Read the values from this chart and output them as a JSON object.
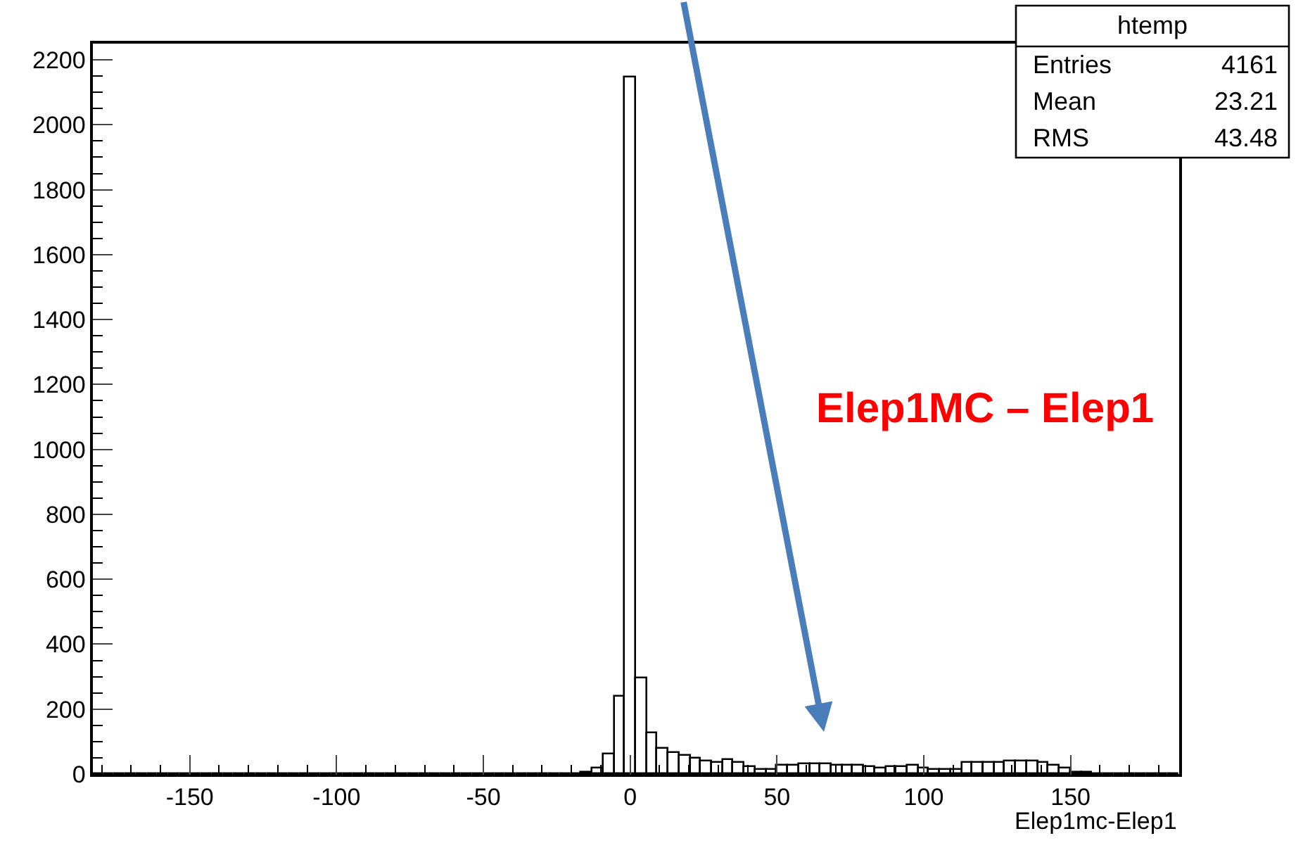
{
  "chart_data": {
    "type": "histogram",
    "xlabel": "Elep1mc-Elep1",
    "bins": [
      -183.0,
      -179.3,
      -175.6,
      -171.9,
      -168.2,
      -164.5,
      -160.8,
      -157.1,
      -153.4,
      -149.7,
      -146.0,
      -142.3,
      -138.6,
      -134.9,
      -131.2,
      -127.5,
      -123.8,
      -120.1,
      -116.4,
      -112.7,
      -109.0,
      -105.3,
      -101.6,
      -97.9,
      -94.2,
      -90.5,
      -86.8,
      -83.1,
      -79.4,
      -75.7,
      -72.0,
      -68.3,
      -64.6,
      -60.9,
      -57.2,
      -53.5,
      -49.8,
      -46.1,
      -42.4,
      -38.7,
      -35.0,
      -31.3,
      -27.6,
      -23.9,
      -20.2,
      -16.5,
      -12.8,
      -9.1,
      -5.4,
      -1.7,
      2.0,
      5.7,
      9.4,
      13.1,
      16.8,
      20.5,
      24.2,
      27.9,
      31.6,
      35.3,
      39.0,
      42.7,
      46.4,
      50.1,
      53.8,
      57.5,
      61.2,
      64.9,
      68.6,
      72.3,
      76.0,
      79.7,
      83.4,
      87.1,
      90.8,
      94.5,
      98.2,
      101.9,
      105.6,
      109.3,
      113.0,
      116.7,
      120.4,
      124.1,
      127.8,
      131.5,
      135.2,
      138.9,
      142.6,
      146.3,
      150.0,
      153.7,
      157.4,
      161.1,
      164.8,
      168.5,
      172.2,
      175.9,
      179.6,
      183.3,
      187.0
    ],
    "values": [
      0,
      0,
      0,
      0,
      0,
      0,
      0,
      0,
      0,
      0,
      0,
      0,
      0,
      0,
      0,
      0,
      0,
      0,
      0,
      0,
      0,
      0,
      0,
      0,
      0,
      0,
      0,
      0,
      0,
      0,
      0,
      0,
      0,
      0,
      0,
      0,
      0,
      0,
      0,
      0,
      0,
      0,
      0,
      0,
      0,
      5,
      17,
      60,
      238,
      2145,
      296,
      127,
      79,
      65,
      55,
      46,
      40,
      35,
      43,
      33,
      22,
      12,
      12,
      25,
      25,
      32,
      32,
      32,
      25,
      25,
      25,
      22,
      17,
      22,
      22,
      25,
      17,
      12,
      12,
      12,
      33,
      33,
      33,
      33,
      40,
      40,
      40,
      36,
      26,
      17,
      6,
      3,
      0,
      0,
      0,
      0,
      0,
      0,
      0,
      0
    ],
    "color": "#000000",
    "xlim": [
      -183,
      187
    ],
    "xticks": [
      -150,
      -100,
      -50,
      0,
      50,
      100,
      150
    ],
    "ylim": [
      0,
      2250
    ],
    "yticks": [
      0,
      200,
      400,
      600,
      800,
      1000,
      1200,
      1400,
      1600,
      1800,
      2000,
      2200
    ],
    "annotations": [
      "Elep1MC – Elep1",
      "htemp",
      "Entries",
      "4161",
      "Mean",
      "23.21",
      "RMS",
      "43.48"
    ]
  }
}
